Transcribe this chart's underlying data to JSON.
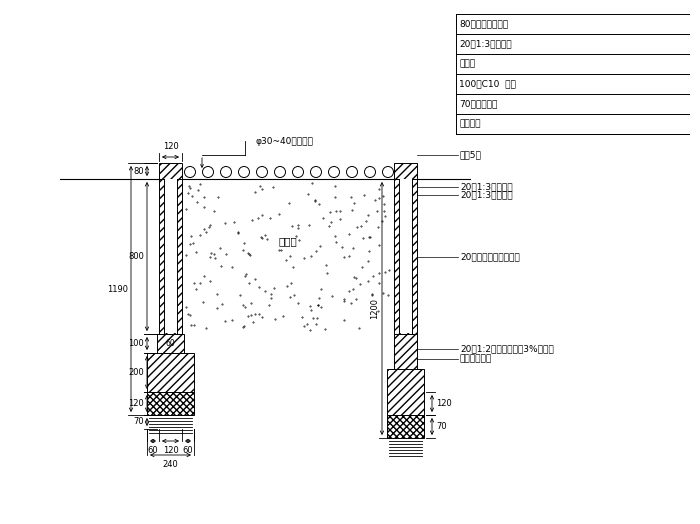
{
  "bg_color": "#ffffff",
  "line_color": "#000000",
  "text_color": "#000000",
  "right_labels_top": [
    "80厚五莲花花岗岩",
    "20厚1:3水泥砂浆",
    "砖砌体",
    "100厚C10  垫层",
    "70厚碎石垫层",
    "素土夯实"
  ],
  "right_labels_side": [
    "面层5层",
    "20厚1:3水泥砂浆",
    "20厚1:3水泥砂浆",
    "20厚五莲花花岗岩贴面",
    "20厚1:2水泥砂浆内掺3%防水粉",
    "原混凝土面面"
  ],
  "label_pebble": "φ30~40卵石笼铺",
  "label_soil": "填植土",
  "dim_1200": "1200"
}
